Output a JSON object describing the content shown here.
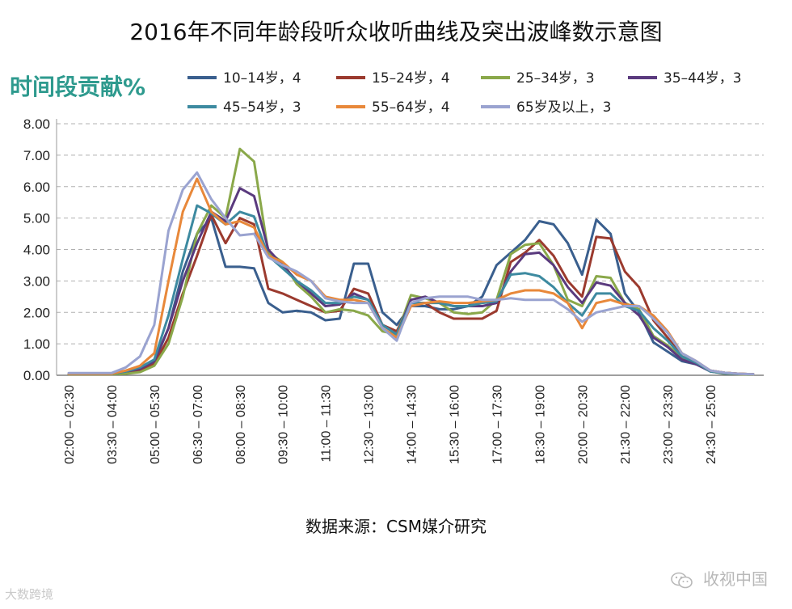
{
  "title": "2016年不同年龄段听众收听曲线及突出波峰数示意图",
  "source": "数据来源：CSM媒介研究",
  "watermark_left": "大数跨境",
  "watermark_right": "收视中国",
  "chart_data": {
    "type": "line",
    "ylabel": "时间段贡献%",
    "ylim": [
      0,
      8
    ],
    "yticks": [
      "0.00",
      "1.00",
      "2.00",
      "3.00",
      "4.00",
      "5.00",
      "6.00",
      "7.00",
      "8.00"
    ],
    "grid": "horizontal dashed",
    "legend_position": "top",
    "x_tick_labels": [
      "02:00 – 02:30",
      "03:30 – 04:00",
      "05:00 – 05:30",
      "06:30 – 07:00",
      "08:00 – 08:30",
      "09:30 – 10:00",
      "11:00 – 11:30",
      "12:30 – 13:00",
      "14:00 – 14:30",
      "15:30 – 16:00",
      "17:00 – 17:30",
      "18:30 – 19:00",
      "20:00 – 20:30",
      "21:30 – 22:00",
      "23:00 – 23:30",
      "24:30 – 25:00"
    ],
    "series": [
      {
        "name": "10–14岁，4",
        "color": "#3a5f8e",
        "values": [
          0.05,
          0.05,
          0.05,
          0.05,
          0.1,
          0.2,
          0.4,
          1.5,
          3.3,
          4.5,
          5.0,
          3.45,
          3.45,
          3.4,
          2.3,
          2.0,
          2.05,
          2.0,
          1.75,
          1.8,
          3.55,
          3.55,
          2.0,
          1.6,
          2.2,
          2.2,
          2.1,
          2.1,
          2.2,
          2.5,
          3.5,
          3.9,
          4.3,
          4.9,
          4.8,
          4.2,
          3.2,
          4.95,
          4.5,
          2.6,
          2.0,
          1.05,
          0.75,
          0.45,
          0.35,
          0.15,
          0.08,
          0.05,
          0.03
        ]
      },
      {
        "name": "15–24岁，4",
        "color": "#9b3a2e",
        "values": [
          0.03,
          0.03,
          0.03,
          0.03,
          0.08,
          0.15,
          0.35,
          1.2,
          2.6,
          3.8,
          5.1,
          4.2,
          5.0,
          4.8,
          2.75,
          2.6,
          2.4,
          2.2,
          2.0,
          2.05,
          2.75,
          2.6,
          1.6,
          1.4,
          2.3,
          2.3,
          2.0,
          1.8,
          1.8,
          1.8,
          2.05,
          3.6,
          3.9,
          4.3,
          3.8,
          3.0,
          2.5,
          4.4,
          4.35,
          3.3,
          2.8,
          1.75,
          1.2,
          0.6,
          0.4,
          0.15,
          0.08,
          0.05,
          0.03
        ]
      },
      {
        "name": "25–34岁，3",
        "color": "#8aa84a",
        "values": [
          0.03,
          0.03,
          0.03,
          0.03,
          0.05,
          0.1,
          0.3,
          1.0,
          2.5,
          4.5,
          5.4,
          5.0,
          7.2,
          6.8,
          3.9,
          3.6,
          2.9,
          2.5,
          2.0,
          2.1,
          2.05,
          1.9,
          1.4,
          1.3,
          2.55,
          2.45,
          2.3,
          2.0,
          1.95,
          2.0,
          2.4,
          3.85,
          4.15,
          4.2,
          3.5,
          2.4,
          2.2,
          3.15,
          3.1,
          2.3,
          2.1,
          1.25,
          0.95,
          0.55,
          0.4,
          0.12,
          0.05,
          0.03,
          0.02
        ]
      },
      {
        "name": "35–44岁，3",
        "color": "#5a3a7e",
        "values": [
          0.05,
          0.05,
          0.05,
          0.05,
          0.12,
          0.2,
          0.45,
          1.5,
          3.0,
          4.2,
          5.2,
          4.9,
          5.95,
          5.7,
          4.0,
          3.5,
          3.0,
          2.6,
          2.2,
          2.25,
          2.6,
          2.4,
          1.6,
          1.3,
          2.4,
          2.5,
          2.3,
          2.2,
          2.2,
          2.2,
          2.3,
          3.3,
          3.85,
          3.9,
          3.5,
          2.8,
          2.3,
          2.95,
          2.85,
          2.3,
          1.9,
          1.2,
          0.9,
          0.5,
          0.35,
          0.12,
          0.06,
          0.04,
          0.03
        ]
      },
      {
        "name": "45–54岁，3",
        "color": "#3d8aa0",
        "values": [
          0.05,
          0.05,
          0.05,
          0.05,
          0.12,
          0.25,
          0.5,
          1.9,
          3.7,
          5.4,
          5.15,
          4.8,
          5.2,
          5.05,
          3.8,
          3.4,
          3.0,
          2.7,
          2.3,
          2.3,
          2.5,
          2.4,
          1.6,
          1.3,
          2.3,
          2.3,
          2.3,
          2.2,
          2.2,
          2.3,
          2.35,
          3.2,
          3.25,
          3.15,
          2.8,
          2.3,
          1.9,
          2.6,
          2.6,
          2.2,
          2.05,
          1.5,
          1.1,
          0.6,
          0.4,
          0.12,
          0.06,
          0.04,
          0.03
        ]
      },
      {
        "name": "55–64岁，4",
        "color": "#e8883a",
        "values": [
          0.05,
          0.05,
          0.05,
          0.05,
          0.15,
          0.3,
          0.7,
          3.0,
          5.2,
          6.25,
          5.2,
          4.8,
          4.9,
          4.7,
          3.8,
          3.6,
          3.2,
          3.0,
          2.5,
          2.4,
          2.4,
          2.3,
          1.5,
          1.2,
          2.2,
          2.3,
          2.35,
          2.3,
          2.3,
          2.35,
          2.4,
          2.6,
          2.7,
          2.7,
          2.6,
          2.3,
          1.5,
          2.3,
          2.4,
          2.25,
          2.2,
          1.9,
          1.4,
          0.7,
          0.45,
          0.15,
          0.08,
          0.05,
          0.03
        ]
      },
      {
        "name": "65岁及以上，3",
        "color": "#9aa3d0",
        "values": [
          0.07,
          0.07,
          0.07,
          0.07,
          0.25,
          0.6,
          1.6,
          4.6,
          5.9,
          6.45,
          5.6,
          5.0,
          4.45,
          4.5,
          3.75,
          3.5,
          3.3,
          3.0,
          2.45,
          2.35,
          2.3,
          2.3,
          1.5,
          1.1,
          2.3,
          2.45,
          2.5,
          2.5,
          2.5,
          2.4,
          2.4,
          2.45,
          2.4,
          2.4,
          2.4,
          2.1,
          1.7,
          2.0,
          2.1,
          2.2,
          2.2,
          1.8,
          1.35,
          0.7,
          0.45,
          0.15,
          0.08,
          0.05,
          0.03
        ]
      }
    ]
  }
}
